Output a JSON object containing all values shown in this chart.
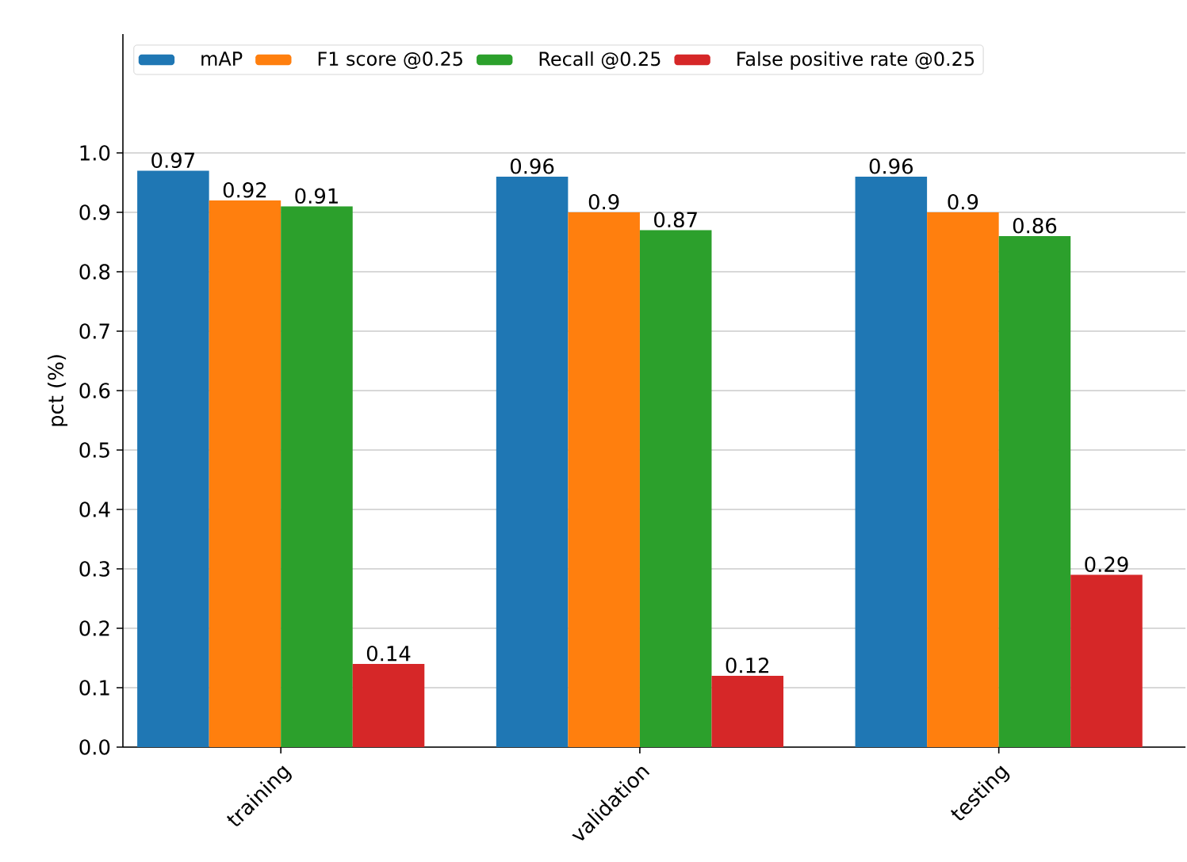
{
  "chart_data": {
    "type": "bar",
    "ylabel": "pct (%)",
    "categories": [
      "training",
      "validation",
      "testing"
    ],
    "series": [
      {
        "name": "mAP",
        "color": "#1f77b4",
        "values": [
          0.97,
          0.96,
          0.96
        ]
      },
      {
        "name": "F1 score @0.25",
        "color": "#ff7f0e",
        "values": [
          0.92,
          0.9,
          0.9
        ]
      },
      {
        "name": "Recall @0.25",
        "color": "#2ca02c",
        "values": [
          0.91,
          0.87,
          0.86
        ]
      },
      {
        "name": "False positive rate @0.25",
        "color": "#d62728",
        "values": [
          0.14,
          0.12,
          0.29
        ]
      }
    ],
    "ylim": [
      0,
      1.2
    ],
    "yticks": [
      {
        "value": 0,
        "label": "0.0"
      },
      0.1,
      0.2,
      0.3,
      0.4,
      0.5,
      0.6,
      0.7,
      0.8,
      0.9,
      {
        "value": 1,
        "label": "1.0"
      }
    ],
    "grid": "y",
    "legend": "top left",
    "data_labels": true
  }
}
